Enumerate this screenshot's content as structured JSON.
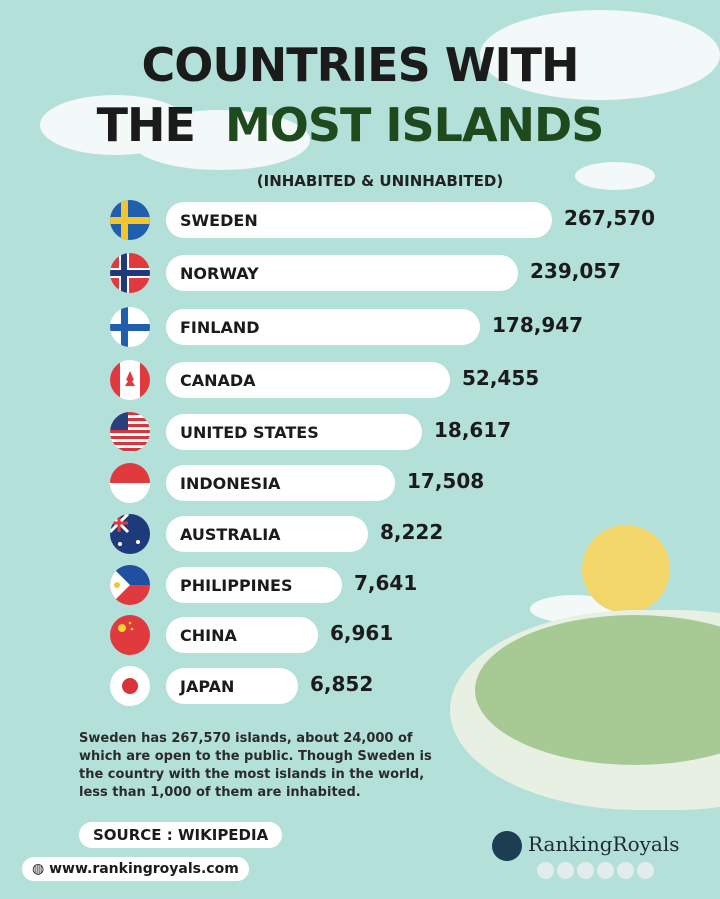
{
  "chart_data": {
    "type": "bar",
    "orientation": "horizontal",
    "title_line1": "COUNTRIES WITH",
    "title_line2_plain": "THE",
    "title_line2_accent": "MOST ISLANDS",
    "subtitle": "(INHABITED & UNINHABITED)",
    "categories": [
      "SWEDEN",
      "NORWAY",
      "FINLAND",
      "CANADA",
      "UNITED STATES",
      "INDONESIA",
      "AUSTRALIA",
      "PHILIPPINES",
      "CHINA",
      "JAPAN"
    ],
    "values": [
      267570,
      239057,
      178947,
      52455,
      18617,
      17508,
      8222,
      7641,
      6961,
      6852
    ],
    "value_labels": [
      "267,570",
      "239,057",
      "178,947",
      "52,455",
      "18,617",
      "17,508",
      "8,222",
      "7,641",
      "6,961",
      "6,852"
    ],
    "flag_icons": [
      "sweden-flag",
      "norway-flag",
      "finland-flag",
      "canada-flag",
      "usa-flag",
      "indonesia-flag",
      "australia-flag",
      "philippines-flag",
      "china-flag",
      "japan-flag"
    ],
    "colors": {
      "background": "#b4e0da",
      "bar": "#ffffff",
      "title": "#1b1b1b",
      "accent_title": "#1e4a1e"
    }
  },
  "note": "Sweden has 267,570 islands, about 24,000 of which are open to the public. Though Sweden is the country with the most islands in the world, less than 1,000 of them are inhabited.",
  "source": "SOURCE : WIKIPEDIA",
  "website": "www.rankingroyals.com",
  "brand": "RankingRoyals",
  "social_icons": [
    "facebook-icon",
    "youtube-icon",
    "twitter-icon",
    "instagram-icon",
    "tiktok-icon",
    "pinterest-icon"
  ]
}
